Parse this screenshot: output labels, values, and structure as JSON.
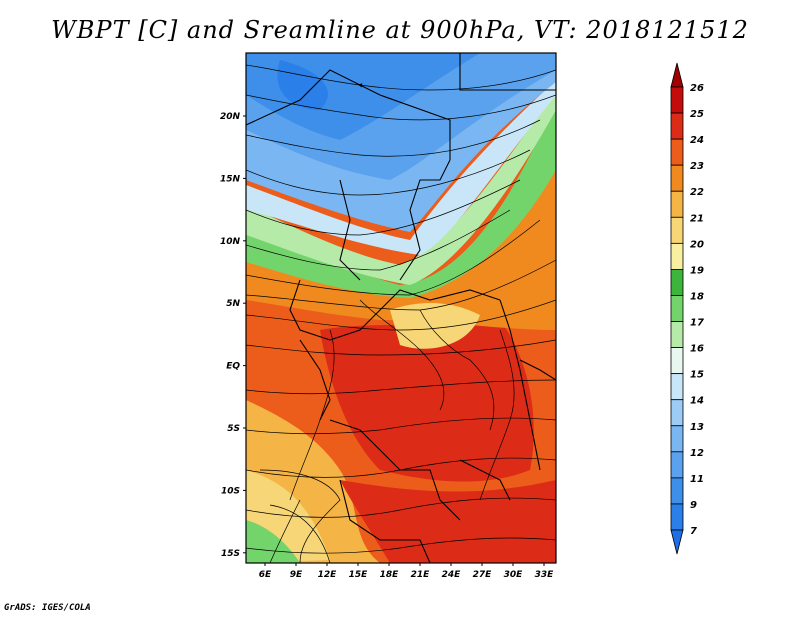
{
  "title": "WBPT [C] and Sreamline at 900hPa, VT: 2018121512",
  "credit": "GrADS: IGES/COLA",
  "map": {
    "lon_labels": [
      "6E",
      "9E",
      "12E",
      "15E",
      "18E",
      "21E",
      "24E",
      "27E",
      "30E",
      "33E"
    ],
    "lat_labels": [
      "20N",
      "15N",
      "10N",
      "5N",
      "EQ",
      "5S",
      "10S",
      "15S"
    ]
  },
  "colorbar": {
    "levels": [
      "7",
      "9",
      "11",
      "12",
      "13",
      "14",
      "15",
      "16",
      "17",
      "18",
      "19",
      "20",
      "21",
      "22",
      "23",
      "24",
      "25",
      "26"
    ],
    "colors": [
      "#1e6ee6",
      "#2a7fe8",
      "#3d8fea",
      "#5aa2ee",
      "#7ab7f2",
      "#9ccbf6",
      "#c8e6f8",
      "#e8f8f0",
      "#b6eaa8",
      "#74d46c",
      "#3db53c",
      "#f8f0a0",
      "#f6d676",
      "#f4b446",
      "#f08a1e",
      "#ec5c1a",
      "#dc2c18",
      "#c40c0c",
      "#a00000"
    ]
  }
}
